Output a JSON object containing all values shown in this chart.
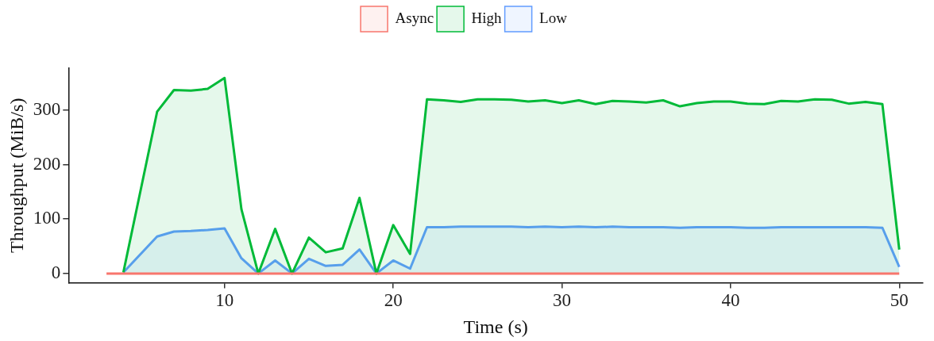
{
  "chart_data": {
    "type": "area",
    "xlabel": "Time (s)",
    "ylabel": "Throughput (MiB/s)",
    "xlim": [
      0.75,
      51.4
    ],
    "xticks": [
      10,
      20,
      30,
      40,
      50
    ],
    "ylim": [
      -17,
      377
    ],
    "yticks": [
      0,
      100,
      200,
      300
    ],
    "grid": false,
    "legend": "top",
    "marker": "none",
    "line_style": "solid",
    "series": [
      {
        "name": "Async",
        "type": "line",
        "color": "#f8766d",
        "x": [
          3,
          4,
          6,
          7,
          8,
          9,
          10,
          11,
          12,
          13,
          14,
          15,
          16,
          17,
          18,
          19,
          20,
          21,
          22,
          23,
          24,
          25,
          26,
          27,
          28,
          29,
          30,
          31,
          32,
          33,
          34,
          35,
          36,
          37,
          38,
          39,
          40,
          41,
          42,
          43,
          44,
          45,
          46,
          47,
          48,
          49,
          50
        ],
        "values": [
          0,
          0,
          0,
          0,
          0,
          0,
          0,
          0,
          0,
          0,
          0,
          0,
          0,
          0,
          0,
          0,
          0,
          0,
          0,
          0,
          0,
          0,
          0,
          0,
          0,
          0,
          0,
          0,
          0,
          0,
          0,
          0,
          0,
          0,
          0,
          0,
          0,
          0,
          0,
          0,
          0,
          0,
          0,
          0,
          0,
          0,
          0
        ]
      },
      {
        "name": "High",
        "color": "#00ba38",
        "x": [
          4,
          6,
          7,
          8,
          9,
          10,
          11,
          12,
          13,
          14,
          15,
          16,
          17,
          18,
          19,
          20,
          21,
          22,
          23,
          24,
          25,
          26,
          27,
          28,
          29,
          30,
          31,
          32,
          33,
          34,
          35,
          36,
          37,
          38,
          39,
          40,
          41,
          42,
          43,
          44,
          45,
          46,
          47,
          48,
          49,
          50
        ],
        "values": [
          2,
          297,
          337,
          336,
          339,
          359,
          118,
          0,
          82,
          0,
          66,
          39,
          46,
          139,
          0,
          89,
          36,
          320,
          318,
          315,
          320,
          320,
          319,
          316,
          318,
          313,
          318,
          311,
          317,
          316,
          314,
          318,
          307,
          313,
          316,
          316,
          312,
          311,
          317,
          316,
          320,
          319,
          312,
          315,
          311,
          44
        ]
      },
      {
        "name": "Low",
        "color": "#619cff",
        "x": [
          4,
          6,
          7,
          8,
          9,
          10,
          11,
          12,
          13,
          14,
          15,
          16,
          17,
          18,
          19,
          20,
          21,
          22,
          23,
          24,
          25,
          26,
          27,
          28,
          29,
          30,
          31,
          32,
          33,
          34,
          35,
          36,
          37,
          38,
          39,
          40,
          41,
          42,
          43,
          44,
          45,
          46,
          47,
          48,
          49,
          50
        ],
        "values": [
          2,
          68,
          77,
          78,
          80,
          83,
          28,
          0,
          24,
          0,
          27,
          14,
          16,
          44,
          0,
          24,
          9,
          85,
          85,
          86,
          86,
          86,
          86,
          85,
          86,
          85,
          86,
          85,
          86,
          85,
          85,
          85,
          84,
          85,
          85,
          85,
          84,
          84,
          85,
          85,
          85,
          85,
          85,
          85,
          84,
          12
        ]
      }
    ]
  }
}
